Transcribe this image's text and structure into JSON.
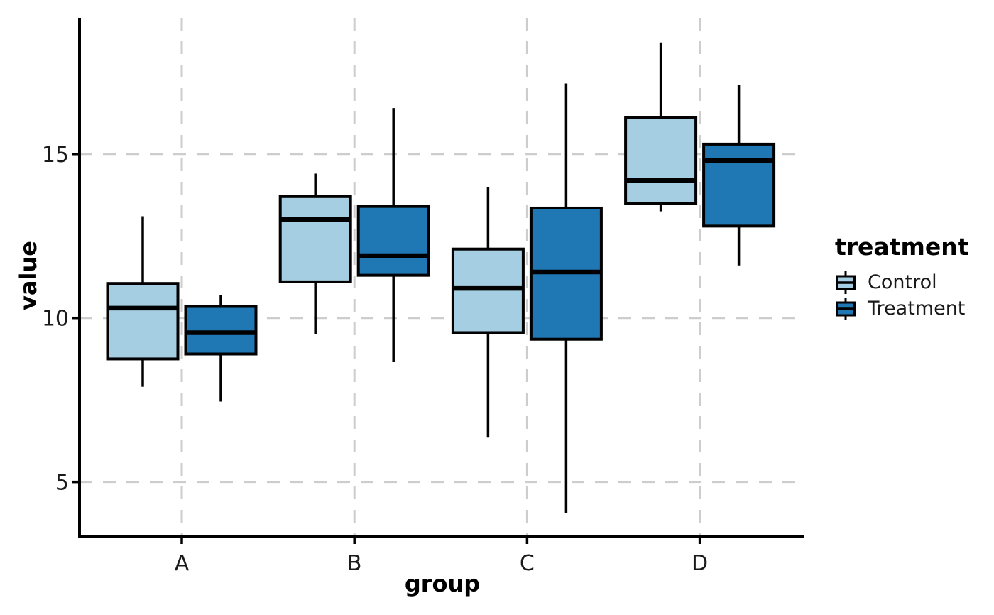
{
  "chart_data": {
    "type": "boxplot",
    "title": "",
    "xlabel": "group",
    "ylabel": "value",
    "legend_title": "treatment",
    "legend_position": "right",
    "categories": [
      "A",
      "B",
      "C",
      "D"
    ],
    "y_ticks": [
      5,
      10,
      15
    ],
    "y_tick_labels": [
      "5",
      "10",
      "15"
    ],
    "ylim": [
      3.4,
      19.1
    ],
    "grid": "dashed major gridlines, horizontal at y ticks and vertical at categories",
    "grid_color": "#CDCDCD",
    "box_outline_color": "#000000",
    "series": [
      {
        "name": "Control",
        "fill": "#A6CEE3",
        "boxes": [
          {
            "group": "A",
            "whisker_low": 7.9,
            "q1": 8.75,
            "median": 10.3,
            "q3": 11.05,
            "whisker_high": 13.1
          },
          {
            "group": "B",
            "whisker_low": 9.5,
            "q1": 11.1,
            "median": 13.0,
            "q3": 13.7,
            "whisker_high": 14.4
          },
          {
            "group": "C",
            "whisker_low": 6.35,
            "q1": 9.55,
            "median": 10.9,
            "q3": 12.1,
            "whisker_high": 14.0
          },
          {
            "group": "D",
            "whisker_low": 13.25,
            "q1": 13.5,
            "median": 14.2,
            "q3": 16.1,
            "whisker_high": 18.4
          }
        ]
      },
      {
        "name": "Treatment",
        "fill": "#1F78B4",
        "boxes": [
          {
            "group": "A",
            "whisker_low": 7.45,
            "q1": 8.9,
            "median": 9.55,
            "q3": 10.35,
            "whisker_high": 10.7
          },
          {
            "group": "B",
            "whisker_low": 8.65,
            "q1": 11.3,
            "median": 11.9,
            "q3": 13.4,
            "whisker_high": 16.4
          },
          {
            "group": "C",
            "whisker_low": 4.05,
            "q1": 9.35,
            "median": 11.4,
            "q3": 13.35,
            "whisker_high": 17.15
          },
          {
            "group": "D",
            "whisker_low": 11.6,
            "q1": 12.8,
            "median": 14.8,
            "q3": 15.3,
            "whisker_high": 17.1
          }
        ]
      }
    ]
  },
  "colors": {
    "control_fill": "#A6CEE3",
    "treatment_fill": "#1F78B4",
    "stroke": "#000000",
    "gridline": "#CDCDCD",
    "tick_text": "#1A1A1A",
    "background": "#FFFFFF"
  }
}
